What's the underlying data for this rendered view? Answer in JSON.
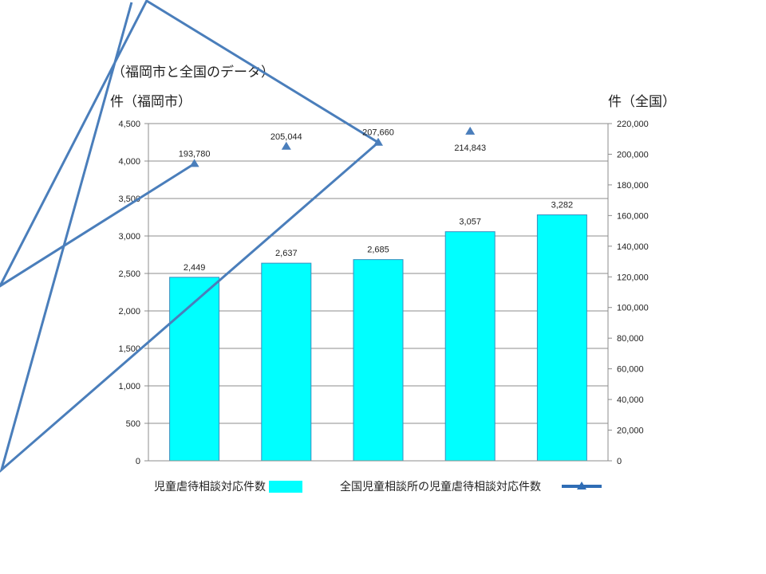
{
  "chart_data": {
    "type": "bar+line",
    "title": "（福岡市と全国のデータ）",
    "ylabel_left": "件（福岡市）",
    "ylabel_right": "件（全国）",
    "categories": [
      "",
      "",
      "",
      "",
      ""
    ],
    "ylim_left": [
      0,
      4500
    ],
    "yticks_left": [
      "0",
      "500",
      "1,000",
      "1,500",
      "2,000",
      "2,500",
      "3,000",
      "3,500",
      "4,000",
      "4,500"
    ],
    "ylim_right": [
      0,
      220000
    ],
    "yticks_right": [
      "0",
      "20,000",
      "40,000",
      "60,000",
      "80,000",
      "100,000",
      "120,000",
      "140,000",
      "160,000",
      "180,000",
      "200,000",
      "220,000"
    ],
    "grid": true,
    "legend_position": "bottom",
    "series": [
      {
        "name": "児童虐待相談対応件数",
        "type": "bar",
        "axis": "left",
        "color": "#00ffff",
        "values": [
          2449,
          2637,
          2685,
          3057,
          3282
        ],
        "labels": [
          "2,449",
          "2,637",
          "2,685",
          "3,057",
          "3,282"
        ]
      },
      {
        "name": "全国児童相談所の児童虐待相談対応件数",
        "type": "line",
        "axis": "right",
        "color": "#4a7ebb",
        "values": [
          193780,
          205044,
          207660,
          214843,
          null
        ],
        "labels": [
          "193,780",
          "205,044",
          "207,660",
          "214,843",
          ""
        ]
      }
    ]
  }
}
